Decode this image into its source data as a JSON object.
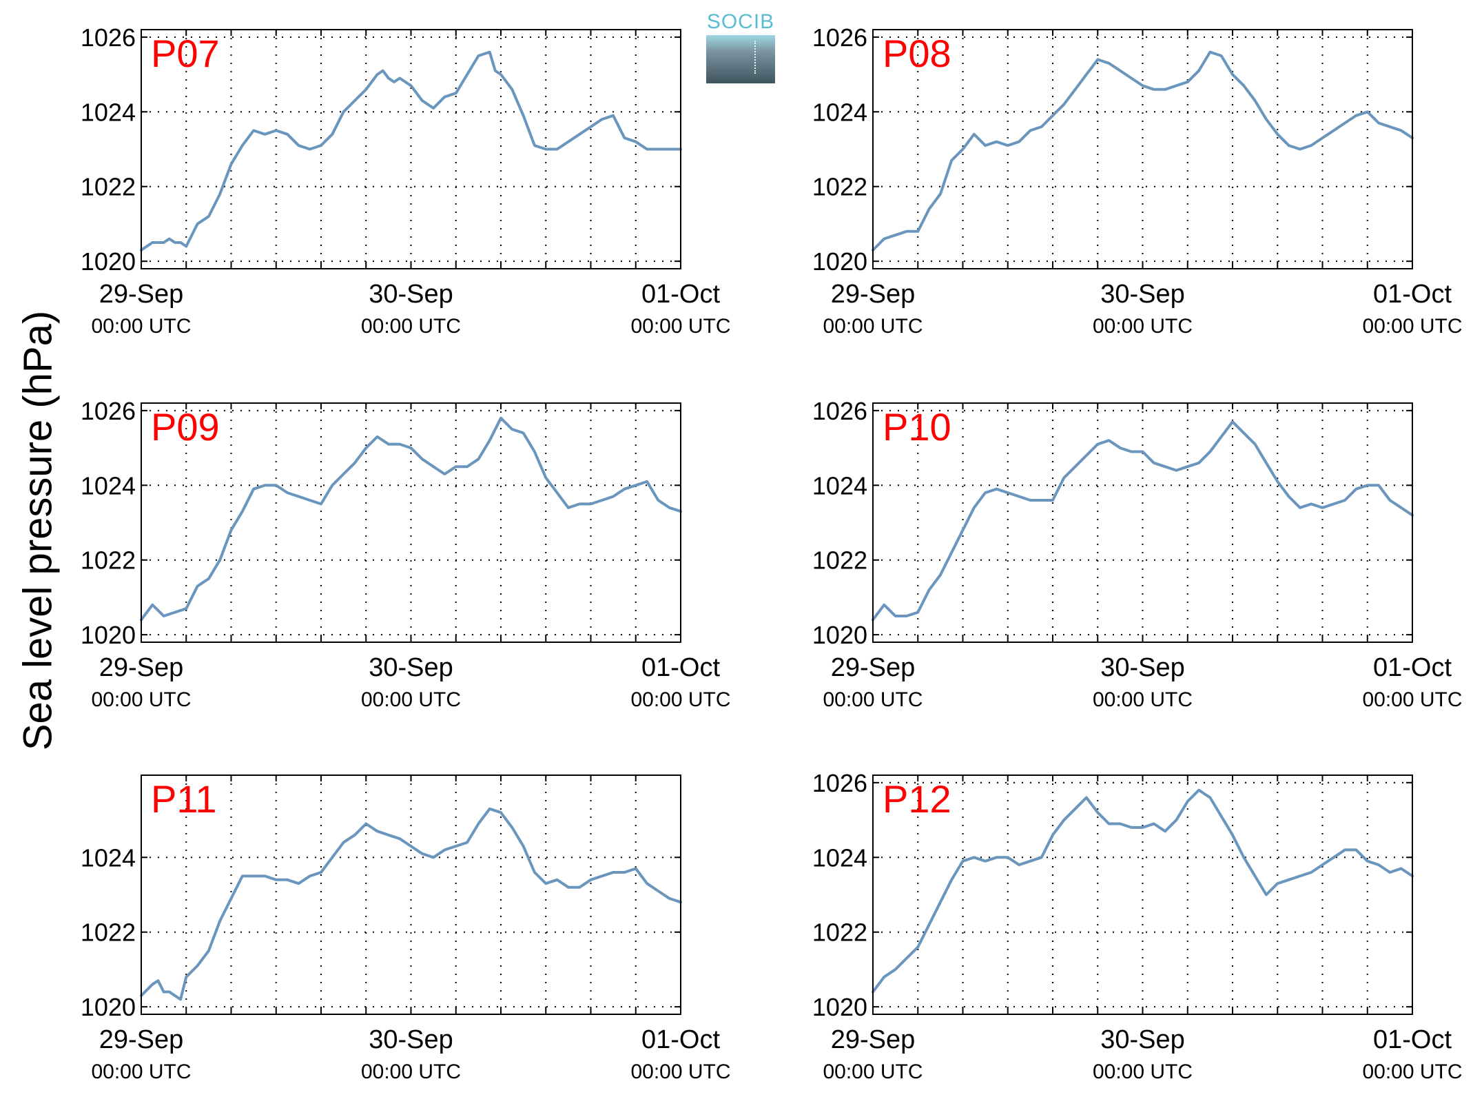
{
  "figure": {
    "ylabel": "Sea level pressure (hPa)",
    "logo_text": "SOCIB",
    "line_color": "#6a95bd",
    "label_color": "#ff0000"
  },
  "chart_data": [
    {
      "type": "line",
      "title": "P07",
      "xlim": [
        0,
        48
      ],
      "ylim": [
        1019.8,
        1026.2
      ],
      "yticks": [
        1020,
        1022,
        1024,
        1026
      ],
      "xticks": [
        {
          "x": 0,
          "date": "29-Sep",
          "time": "00:00 UTC"
        },
        {
          "x": 24,
          "date": "30-Sep",
          "time": "00:00 UTC"
        },
        {
          "x": 48,
          "date": "01-Oct",
          "time": "00:00 UTC"
        }
      ],
      "grid": true,
      "x": [
        0,
        1,
        2,
        2.5,
        3,
        3.5,
        4,
        5,
        6,
        7,
        8,
        9,
        10,
        11,
        12,
        13,
        14,
        15,
        16,
        17,
        18,
        19,
        20,
        21,
        21.5,
        22,
        22.5,
        23,
        24,
        25,
        26,
        27,
        28,
        29,
        30,
        31,
        31.5,
        32,
        33,
        34,
        35,
        36,
        37,
        38,
        39,
        40,
        41,
        42,
        43,
        44,
        45,
        45.5,
        46,
        47,
        48
      ],
      "y": [
        1020.3,
        1020.5,
        1020.5,
        1020.6,
        1020.5,
        1020.5,
        1020.4,
        1021.0,
        1021.2,
        1021.8,
        1022.6,
        1023.1,
        1023.5,
        1023.4,
        1023.5,
        1023.4,
        1023.1,
        1023.0,
        1023.1,
        1023.4,
        1024.0,
        1024.3,
        1024.6,
        1025.0,
        1025.1,
        1024.9,
        1024.8,
        1024.9,
        1024.7,
        1024.3,
        1024.1,
        1024.4,
        1024.5,
        1025.0,
        1025.5,
        1025.6,
        1025.1,
        1025.0,
        1024.6,
        1023.9,
        1023.1,
        1023.0,
        1023.0,
        1023.2,
        1023.4,
        1023.6,
        1023.8,
        1023.9,
        1023.3,
        1023.2,
        1023.0,
        1023.0,
        1023.0,
        1023.0,
        1023.0
      ]
    },
    {
      "type": "line",
      "title": "P08",
      "xlim": [
        0,
        48
      ],
      "ylim": [
        1019.8,
        1026.2
      ],
      "yticks": [
        1020,
        1022,
        1024,
        1026
      ],
      "xticks": [
        {
          "x": 0,
          "date": "29-Sep",
          "time": "00:00 UTC"
        },
        {
          "x": 24,
          "date": "30-Sep",
          "time": "00:00 UTC"
        },
        {
          "x": 48,
          "date": "01-Oct",
          "time": "00:00 UTC"
        }
      ],
      "grid": true,
      "x": [
        0,
        1,
        2,
        3,
        4,
        5,
        6,
        7,
        8,
        9,
        10,
        11,
        12,
        13,
        14,
        15,
        16,
        17,
        18,
        19,
        20,
        21,
        22,
        23,
        24,
        25,
        26,
        27,
        28,
        29,
        30,
        31,
        32,
        33,
        34,
        35,
        36,
        37,
        38,
        39,
        40,
        41,
        42,
        43,
        44,
        45,
        46,
        47,
        48
      ],
      "y": [
        1020.3,
        1020.6,
        1020.7,
        1020.8,
        1020.8,
        1021.4,
        1021.8,
        1022.7,
        1023.0,
        1023.4,
        1023.1,
        1023.2,
        1023.1,
        1023.2,
        1023.5,
        1023.6,
        1023.9,
        1024.2,
        1024.6,
        1025.0,
        1025.4,
        1025.3,
        1025.1,
        1024.9,
        1024.7,
        1024.6,
        1024.6,
        1024.7,
        1024.8,
        1025.1,
        1025.6,
        1025.5,
        1025.0,
        1024.7,
        1024.3,
        1023.8,
        1023.4,
        1023.1,
        1023.0,
        1023.1,
        1023.3,
        1023.5,
        1023.7,
        1023.9,
        1024.0,
        1023.7,
        1023.6,
        1023.5,
        1023.3
      ]
    },
    {
      "type": "line",
      "title": "P09",
      "xlim": [
        0,
        48
      ],
      "ylim": [
        1019.8,
        1026.2
      ],
      "yticks": [
        1020,
        1022,
        1024,
        1026
      ],
      "xticks": [
        {
          "x": 0,
          "date": "29-Sep",
          "time": "00:00 UTC"
        },
        {
          "x": 24,
          "date": "30-Sep",
          "time": "00:00 UTC"
        },
        {
          "x": 48,
          "date": "01-Oct",
          "time": "00:00 UTC"
        }
      ],
      "grid": true,
      "x": [
        0,
        1,
        2,
        3,
        4,
        5,
        6,
        7,
        8,
        9,
        10,
        11,
        12,
        13,
        14,
        15,
        16,
        17,
        18,
        19,
        20,
        21,
        22,
        23,
        24,
        25,
        26,
        27,
        28,
        29,
        30,
        31,
        32,
        33,
        34,
        35,
        36,
        37,
        38,
        39,
        40,
        41,
        42,
        43,
        44,
        45,
        46,
        47,
        48
      ],
      "y": [
        1020.4,
        1020.8,
        1020.5,
        1020.6,
        1020.7,
        1021.3,
        1021.5,
        1022.0,
        1022.8,
        1023.3,
        1023.9,
        1024.0,
        1024.0,
        1023.8,
        1023.7,
        1023.6,
        1023.5,
        1024.0,
        1024.3,
        1024.6,
        1025.0,
        1025.3,
        1025.1,
        1025.1,
        1025.0,
        1024.7,
        1024.5,
        1024.3,
        1024.5,
        1024.5,
        1024.7,
        1025.2,
        1025.8,
        1025.5,
        1025.4,
        1024.9,
        1024.2,
        1023.8,
        1023.4,
        1023.5,
        1023.5,
        1023.6,
        1023.7,
        1023.9,
        1024.0,
        1024.1,
        1023.6,
        1023.4,
        1023.3
      ]
    },
    {
      "type": "line",
      "title": "P10",
      "xlim": [
        0,
        48
      ],
      "ylim": [
        1019.8,
        1026.2
      ],
      "yticks": [
        1020,
        1022,
        1024,
        1026
      ],
      "xticks": [
        {
          "x": 0,
          "date": "29-Sep",
          "time": "00:00 UTC"
        },
        {
          "x": 24,
          "date": "30-Sep",
          "time": "00:00 UTC"
        },
        {
          "x": 48,
          "date": "01-Oct",
          "time": "00:00 UTC"
        }
      ],
      "grid": true,
      "x": [
        0,
        1,
        2,
        3,
        4,
        5,
        6,
        7,
        8,
        9,
        10,
        11,
        12,
        13,
        14,
        15,
        16,
        17,
        18,
        19,
        20,
        21,
        22,
        23,
        24,
        25,
        26,
        27,
        28,
        29,
        30,
        31,
        32,
        33,
        34,
        35,
        36,
        37,
        38,
        39,
        40,
        41,
        42,
        43,
        44,
        45,
        46,
        47,
        48
      ],
      "y": [
        1020.4,
        1020.8,
        1020.5,
        1020.5,
        1020.6,
        1021.2,
        1021.6,
        1022.2,
        1022.8,
        1023.4,
        1023.8,
        1023.9,
        1023.8,
        1023.7,
        1023.6,
        1023.6,
        1023.6,
        1024.2,
        1024.5,
        1024.8,
        1025.1,
        1025.2,
        1025.0,
        1024.9,
        1024.9,
        1024.6,
        1024.5,
        1024.4,
        1024.5,
        1024.6,
        1024.9,
        1025.3,
        1025.7,
        1025.4,
        1025.1,
        1024.6,
        1024.1,
        1023.7,
        1023.4,
        1023.5,
        1023.4,
        1023.5,
        1023.6,
        1023.9,
        1024.0,
        1024.0,
        1023.6,
        1023.4,
        1023.2
      ]
    },
    {
      "type": "line",
      "title": "P11",
      "xlim": [
        0,
        48
      ],
      "ylim": [
        1019.8,
        1026.2
      ],
      "yticks": [
        1020,
        1022,
        1024
      ],
      "xticks": [
        {
          "x": 0,
          "date": "29-Sep",
          "time": "00:00 UTC"
        },
        {
          "x": 24,
          "date": "30-Sep",
          "time": "00:00 UTC"
        },
        {
          "x": 48,
          "date": "01-Oct",
          "time": "00:00 UTC"
        }
      ],
      "grid": true,
      "x": [
        0,
        1,
        1.5,
        2,
        2.5,
        3,
        3.5,
        4,
        5,
        6,
        7,
        8,
        9,
        10,
        11,
        12,
        13,
        14,
        15,
        16,
        17,
        18,
        19,
        20,
        21,
        22,
        23,
        24,
        25,
        26,
        27,
        28,
        29,
        30,
        31,
        32,
        33,
        34,
        35,
        36,
        37,
        38,
        39,
        40,
        41,
        42,
        43,
        44,
        45,
        46,
        47,
        48
      ],
      "y": [
        1020.3,
        1020.6,
        1020.7,
        1020.4,
        1020.4,
        1020.3,
        1020.2,
        1020.8,
        1021.1,
        1021.5,
        1022.3,
        1022.9,
        1023.5,
        1023.5,
        1023.5,
        1023.4,
        1023.4,
        1023.3,
        1023.5,
        1023.6,
        1024.0,
        1024.4,
        1024.6,
        1024.9,
        1024.7,
        1024.6,
        1024.5,
        1024.3,
        1024.1,
        1024.0,
        1024.2,
        1024.3,
        1024.4,
        1024.9,
        1025.3,
        1025.2,
        1024.8,
        1024.3,
        1023.6,
        1023.3,
        1023.4,
        1023.2,
        1023.2,
        1023.4,
        1023.5,
        1023.6,
        1023.6,
        1023.7,
        1023.3,
        1023.1,
        1022.9,
        1022.8
      ]
    },
    {
      "type": "line",
      "title": "P12",
      "xlim": [
        0,
        48
      ],
      "ylim": [
        1019.8,
        1026.2
      ],
      "yticks": [
        1020,
        1022,
        1024,
        1026
      ],
      "xticks": [
        {
          "x": 0,
          "date": "29-Sep",
          "time": "00:00 UTC"
        },
        {
          "x": 24,
          "date": "30-Sep",
          "time": "00:00 UTC"
        },
        {
          "x": 48,
          "date": "01-Oct",
          "time": "00:00 UTC"
        }
      ],
      "grid": true,
      "x": [
        0,
        1,
        2,
        3,
        4,
        5,
        6,
        7,
        8,
        9,
        10,
        11,
        12,
        13,
        14,
        15,
        16,
        17,
        18,
        19,
        20,
        21,
        22,
        23,
        24,
        25,
        26,
        27,
        28,
        29,
        30,
        31,
        32,
        33,
        34,
        35,
        36,
        37,
        38,
        39,
        40,
        41,
        42,
        43,
        44,
        45,
        46,
        47,
        48
      ],
      "y": [
        1020.4,
        1020.8,
        1021.0,
        1021.3,
        1021.6,
        1022.2,
        1022.8,
        1023.4,
        1023.9,
        1024.0,
        1023.9,
        1024.0,
        1024.0,
        1023.8,
        1023.9,
        1024.0,
        1024.6,
        1025.0,
        1025.3,
        1025.6,
        1025.2,
        1024.9,
        1024.9,
        1024.8,
        1024.8,
        1024.9,
        1024.7,
        1025.0,
        1025.5,
        1025.8,
        1025.6,
        1025.1,
        1024.6,
        1024.0,
        1023.5,
        1023.0,
        1023.3,
        1023.4,
        1023.5,
        1023.6,
        1023.8,
        1024.0,
        1024.2,
        1024.2,
        1023.9,
        1023.8,
        1023.6,
        1023.7,
        1023.5
      ]
    }
  ]
}
